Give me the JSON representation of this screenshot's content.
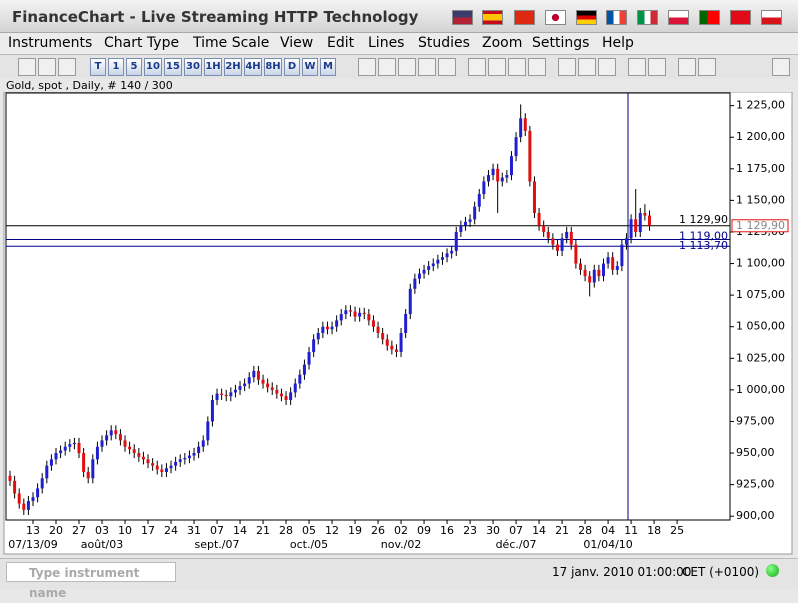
{
  "window": {
    "title": "FinanceChart - Live Streaming HTTP Technology"
  },
  "menu": [
    "Instruments",
    "Chart Type",
    "Time Scale",
    "View",
    "Edit",
    "Lines",
    "Studies",
    "Zoom",
    "Settings",
    "Help"
  ],
  "toolbar": {
    "periods": [
      "T",
      "1",
      "5",
      "10",
      "15",
      "30",
      "1H",
      "2H",
      "4H",
      "8H",
      "D",
      "W",
      "M"
    ]
  },
  "chart_data": {
    "type": "candlestick",
    "title": "Gold, spot , Daily, # 140 / 300",
    "up_color": "#1f1fd0",
    "down_color": "#e01010",
    "candles": [
      [
        932,
        936,
        924,
        928
      ],
      [
        928,
        932,
        914,
        918
      ],
      [
        918,
        922,
        906,
        910
      ],
      [
        910,
        914,
        901,
        905
      ],
      [
        905,
        916,
        901,
        912
      ],
      [
        912,
        919,
        908,
        915
      ],
      [
        915,
        926,
        911,
        922
      ],
      [
        922,
        934,
        918,
        930
      ],
      [
        930,
        944,
        926,
        940
      ],
      [
        940,
        949,
        936,
        945
      ],
      [
        945,
        954,
        941,
        950
      ],
      [
        950,
        956,
        946,
        952
      ],
      [
        952,
        959,
        948,
        955
      ],
      [
        955,
        961,
        951,
        957
      ],
      [
        957,
        962,
        953,
        958
      ],
      [
        958,
        962,
        946,
        950
      ],
      [
        950,
        954,
        931,
        935
      ],
      [
        935,
        939,
        926,
        930
      ],
      [
        930,
        949,
        926,
        945
      ],
      [
        945,
        959,
        941,
        955
      ],
      [
        955,
        964,
        951,
        960
      ],
      [
        960,
        968,
        956,
        964
      ],
      [
        964,
        972,
        960,
        968
      ],
      [
        968,
        972,
        961,
        965
      ],
      [
        965,
        969,
        956,
        960
      ],
      [
        960,
        964,
        951,
        955
      ],
      [
        955,
        959,
        949,
        953
      ],
      [
        953,
        957,
        946,
        950
      ],
      [
        950,
        954,
        943,
        947
      ],
      [
        947,
        951,
        941,
        945
      ],
      [
        945,
        949,
        938,
        942
      ],
      [
        942,
        946,
        936,
        940
      ],
      [
        940,
        944,
        933,
        937
      ],
      [
        937,
        941,
        931,
        935
      ],
      [
        935,
        942,
        931,
        938
      ],
      [
        938,
        944,
        934,
        940
      ],
      [
        940,
        947,
        936,
        943
      ],
      [
        943,
        949,
        939,
        945
      ],
      [
        945,
        950,
        941,
        946
      ],
      [
        946,
        952,
        942,
        948
      ],
      [
        948,
        954,
        944,
        950
      ],
      [
        950,
        959,
        946,
        955
      ],
      [
        955,
        964,
        951,
        960
      ],
      [
        960,
        979,
        956,
        975
      ],
      [
        975,
        996,
        971,
        992
      ],
      [
        992,
        1001,
        988,
        997
      ],
      [
        997,
        1001,
        992,
        996
      ],
      [
        996,
        1000,
        991,
        995
      ],
      [
        995,
        1002,
        991,
        998
      ],
      [
        998,
        1004,
        994,
        1000
      ],
      [
        1000,
        1007,
        996,
        1003
      ],
      [
        1003,
        1009,
        999,
        1005
      ],
      [
        1005,
        1014,
        1001,
        1010
      ],
      [
        1010,
        1019,
        1006,
        1015
      ],
      [
        1015,
        1019,
        1004,
        1008
      ],
      [
        1008,
        1012,
        1001,
        1005
      ],
      [
        1005,
        1009,
        998,
        1002
      ],
      [
        1002,
        1006,
        996,
        1000
      ],
      [
        1000,
        1004,
        993,
        997
      ],
      [
        997,
        1001,
        991,
        995
      ],
      [
        995,
        999,
        988,
        992
      ],
      [
        992,
        1002,
        988,
        998
      ],
      [
        998,
        1009,
        994,
        1005
      ],
      [
        1005,
        1016,
        1001,
        1012
      ],
      [
        1012,
        1024,
        1008,
        1020
      ],
      [
        1020,
        1034,
        1016,
        1030
      ],
      [
        1030,
        1044,
        1026,
        1040
      ],
      [
        1040,
        1049,
        1036,
        1045
      ],
      [
        1045,
        1054,
        1041,
        1050
      ],
      [
        1050,
        1054,
        1044,
        1048
      ],
      [
        1048,
        1054,
        1044,
        1050
      ],
      [
        1050,
        1059,
        1046,
        1055
      ],
      [
        1055,
        1064,
        1051,
        1060
      ],
      [
        1060,
        1067,
        1056,
        1063
      ],
      [
        1063,
        1067,
        1058,
        1062
      ],
      [
        1062,
        1066,
        1054,
        1058
      ],
      [
        1058,
        1065,
        1054,
        1061
      ],
      [
        1061,
        1065,
        1056,
        1060
      ],
      [
        1060,
        1064,
        1051,
        1055
      ],
      [
        1055,
        1059,
        1046,
        1050
      ],
      [
        1050,
        1054,
        1041,
        1045
      ],
      [
        1045,
        1049,
        1036,
        1040
      ],
      [
        1040,
        1044,
        1031,
        1035
      ],
      [
        1035,
        1039,
        1028,
        1032
      ],
      [
        1032,
        1036,
        1026,
        1030
      ],
      [
        1030,
        1049,
        1026,
        1045
      ],
      [
        1045,
        1064,
        1041,
        1060
      ],
      [
        1060,
        1084,
        1056,
        1080
      ],
      [
        1080,
        1092,
        1076,
        1088
      ],
      [
        1088,
        1096,
        1084,
        1092
      ],
      [
        1092,
        1099,
        1088,
        1095
      ],
      [
        1095,
        1102,
        1091,
        1098
      ],
      [
        1098,
        1104,
        1094,
        1100
      ],
      [
        1100,
        1107,
        1096,
        1103
      ],
      [
        1103,
        1109,
        1099,
        1105
      ],
      [
        1105,
        1112,
        1101,
        1108
      ],
      [
        1108,
        1114,
        1104,
        1110
      ],
      [
        1110,
        1129,
        1106,
        1125
      ],
      [
        1125,
        1134,
        1121,
        1130
      ],
      [
        1130,
        1137,
        1126,
        1133
      ],
      [
        1133,
        1139,
        1129,
        1135
      ],
      [
        1135,
        1149,
        1131,
        1145
      ],
      [
        1145,
        1159,
        1141,
        1155
      ],
      [
        1155,
        1169,
        1151,
        1165
      ],
      [
        1165,
        1174,
        1161,
        1170
      ],
      [
        1170,
        1179,
        1166,
        1175
      ],
      [
        1175,
        1179,
        1140,
        1165
      ],
      [
        1165,
        1172,
        1161,
        1168
      ],
      [
        1168,
        1174,
        1164,
        1170
      ],
      [
        1170,
        1189,
        1166,
        1185
      ],
      [
        1185,
        1204,
        1181,
        1200
      ],
      [
        1200,
        1226,
        1196,
        1215
      ],
      [
        1215,
        1219,
        1201,
        1205
      ],
      [
        1205,
        1209,
        1161,
        1165
      ],
      [
        1165,
        1169,
        1136,
        1140
      ],
      [
        1140,
        1144,
        1126,
        1130
      ],
      [
        1130,
        1134,
        1121,
        1125
      ],
      [
        1125,
        1129,
        1116,
        1120
      ],
      [
        1120,
        1124,
        1111,
        1115
      ],
      [
        1115,
        1119,
        1106,
        1110
      ],
      [
        1110,
        1124,
        1106,
        1120
      ],
      [
        1120,
        1129,
        1116,
        1125
      ],
      [
        1125,
        1129,
        1111,
        1115
      ],
      [
        1115,
        1119,
        1096,
        1100
      ],
      [
        1100,
        1104,
        1091,
        1095
      ],
      [
        1095,
        1099,
        1086,
        1090
      ],
      [
        1090,
        1094,
        1074,
        1085
      ],
      [
        1085,
        1099,
        1081,
        1095
      ],
      [
        1095,
        1099,
        1086,
        1090
      ],
      [
        1090,
        1104,
        1086,
        1100
      ],
      [
        1100,
        1109,
        1096,
        1105
      ],
      [
        1105,
        1109,
        1091,
        1095
      ],
      [
        1095,
        1102,
        1091,
        1098
      ],
      [
        1098,
        1119,
        1094,
        1115
      ],
      [
        1115,
        1124,
        1111,
        1120
      ],
      [
        1120,
        1139,
        1116,
        1135
      ],
      [
        1135,
        1159,
        1121,
        1125
      ],
      [
        1125,
        1144,
        1121,
        1140
      ],
      [
        1140,
        1147,
        1134,
        1138
      ],
      [
        1138,
        1142,
        1126,
        1129.9
      ]
    ],
    "xlim": [
      -0.87,
      156.5
    ],
    "xticks": [
      {
        "value": 5,
        "label": "13"
      },
      {
        "value": 10,
        "label": "20"
      },
      {
        "value": 15,
        "label": "27"
      },
      {
        "value": 20,
        "label": "03"
      },
      {
        "value": 25,
        "label": "10"
      },
      {
        "value": 30,
        "label": "17"
      },
      {
        "value": 35,
        "label": "24"
      },
      {
        "value": 40,
        "label": "31"
      },
      {
        "value": 45,
        "label": "07"
      },
      {
        "value": 50,
        "label": "14"
      },
      {
        "value": 55,
        "label": "21"
      },
      {
        "value": 60,
        "label": "28"
      },
      {
        "value": 65,
        "label": "05"
      },
      {
        "value": 70,
        "label": "12"
      },
      {
        "value": 75,
        "label": "19"
      },
      {
        "value": 80,
        "label": "26"
      },
      {
        "value": 85,
        "label": "02"
      },
      {
        "value": 90,
        "label": "09"
      },
      {
        "value": 95,
        "label": "16"
      },
      {
        "value": 100,
        "label": "23"
      },
      {
        "value": 105,
        "label": "30"
      },
      {
        "value": 110,
        "label": "07"
      },
      {
        "value": 115,
        "label": "14"
      },
      {
        "value": 120,
        "label": "21"
      },
      {
        "value": 125,
        "label": "28"
      },
      {
        "value": 130,
        "label": "04"
      },
      {
        "value": 135,
        "label": "11"
      },
      {
        "value": 140,
        "label": "18"
      },
      {
        "value": 145,
        "label": "25"
      }
    ],
    "xticks_period": [
      {
        "value": 5,
        "label": "07/13/09"
      },
      {
        "value": 20,
        "label": "août/03"
      },
      {
        "value": 45,
        "label": "sept./07"
      },
      {
        "value": 65,
        "label": "oct./05"
      },
      {
        "value": 85,
        "label": "nov./02"
      },
      {
        "value": 110,
        "label": "déc./07"
      },
      {
        "value": 130,
        "label": "01/04/10"
      }
    ],
    "ylim": [
      897,
      1235
    ],
    "yticks": [
      {
        "value": 900,
        "label": "900,00"
      },
      {
        "value": 925,
        "label": "925,00"
      },
      {
        "value": 950,
        "label": "950,00"
      },
      {
        "value": 975,
        "label": "975,00"
      },
      {
        "value": 1000,
        "label": "1 000,00"
      },
      {
        "value": 1025,
        "label": "1 025,00"
      },
      {
        "value": 1050,
        "label": "1 050,00"
      },
      {
        "value": 1075,
        "label": "1 075,00"
      },
      {
        "value": 1100,
        "label": "1 100,00"
      },
      {
        "value": 1125,
        "label": "1 125,00"
      },
      {
        "value": 1150,
        "label": "1 150,00"
      },
      {
        "value": 1175,
        "label": "1 175,00"
      },
      {
        "value": 1200,
        "label": "1 200,00"
      },
      {
        "value": 1225,
        "label": "1 225,00"
      }
    ],
    "price_lines": [
      {
        "value": 1129.9,
        "label": "1 129,90"
      },
      {
        "value": 1119,
        "label": "1 119,00"
      },
      {
        "value": 1113.7,
        "label": "1 113,70"
      }
    ]
  },
  "status": {
    "search_placeholder": "Type instrument name",
    "time": "17 janv. 2010 01:00:00",
    "zone": "CET (+0100)"
  }
}
